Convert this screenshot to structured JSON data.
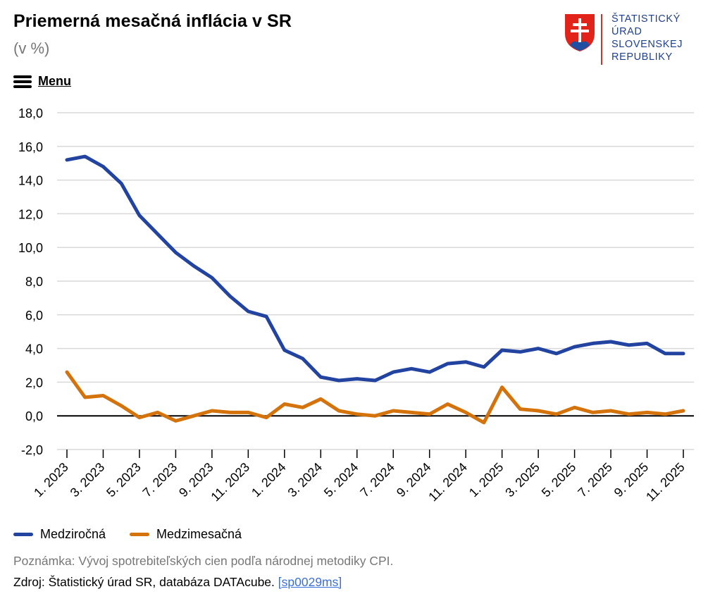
{
  "header": {
    "title": "Priemerná mesačná inflácia v SR",
    "subtitle": "(v %)"
  },
  "logo": {
    "lines": [
      "ŠTATISTICKÝ",
      "ÚRAD",
      "SLOVENSKEJ",
      "REPUBLIKY"
    ]
  },
  "menu": {
    "label": "Menu"
  },
  "colors": {
    "series_1": "#2244a0",
    "series_2": "#d4730c",
    "grid": "#d9d9d9",
    "zero_line": "#000000"
  },
  "chart_data": {
    "type": "line",
    "title": "Priemerná mesačná inflácia v SR",
    "ylabel": "",
    "xlabel": "",
    "ylim": [
      -2,
      18
    ],
    "yticks": [
      "-2,0",
      "0,0",
      "2,0",
      "4,0",
      "6,0",
      "8,0",
      "10,0",
      "12,0",
      "14,0",
      "16,0",
      "18,0"
    ],
    "grid": true,
    "legend_position": "bottom-left",
    "categories": [
      "1. 2023",
      "2. 2023",
      "3. 2023",
      "4. 2023",
      "5. 2023",
      "6. 2023",
      "7. 2023",
      "8. 2023",
      "9. 2023",
      "10. 2023",
      "11. 2023",
      "12. 2023",
      "1. 2024",
      "2. 2024",
      "3. 2024",
      "4. 2024",
      "5. 2024",
      "6. 2024",
      "7. 2024",
      "8. 2024",
      "9. 2024",
      "10. 2024",
      "11. 2024",
      "12. 2024",
      "1. 2025",
      "2. 2025",
      "3. 2025",
      "4. 2025",
      "5. 2025",
      "6. 2025",
      "7. 2025",
      "8. 2025",
      "9. 2025",
      "10. 2025",
      "11. 2025"
    ],
    "tick_labels": [
      "1. 2023",
      "3. 2023",
      "5. 2023",
      "7. 2023",
      "9. 2023",
      "11. 2023",
      "1. 2024",
      "3. 2024",
      "5. 2024",
      "7. 2024",
      "9. 2024",
      "11. 2024",
      "1. 2025",
      "3. 2025",
      "5. 2025",
      "7. 2025",
      "9. 2025",
      "11. 2025"
    ],
    "series": [
      {
        "name": "Medziročná",
        "values": [
          15.2,
          15.4,
          14.8,
          13.8,
          11.9,
          10.8,
          9.7,
          8.9,
          8.2,
          7.1,
          6.2,
          5.9,
          3.9,
          3.4,
          2.3,
          2.1,
          2.2,
          2.1,
          2.6,
          2.8,
          2.6,
          3.1,
          3.2,
          2.9,
          3.9,
          3.8,
          4.0,
          3.7,
          4.1,
          4.3,
          4.4,
          4.2,
          4.3,
          3.7,
          3.7
        ]
      },
      {
        "name": "Medzimesačná",
        "values": [
          2.6,
          1.1,
          1.2,
          0.6,
          -0.1,
          0.2,
          -0.3,
          0.0,
          0.3,
          0.2,
          0.2,
          -0.1,
          0.7,
          0.5,
          1.0,
          0.3,
          0.1,
          0.0,
          0.3,
          0.2,
          0.1,
          0.7,
          0.2,
          -0.4,
          1.7,
          0.4,
          0.3,
          0.1,
          0.5,
          0.2,
          0.3,
          0.1,
          0.2,
          0.1,
          0.3
        ]
      }
    ]
  },
  "legend": {
    "items": [
      {
        "label": "Medziročná"
      },
      {
        "label": "Medzimesačná"
      }
    ]
  },
  "footer": {
    "note": "Poznámka: Vývoj spotrebiteľských cien podľa národnej metodiky CPI.",
    "source_prefix": "Zdroj: Štatistický úrad SR, databáza DATAcube.",
    "source_link": "[sp0029ms]"
  }
}
